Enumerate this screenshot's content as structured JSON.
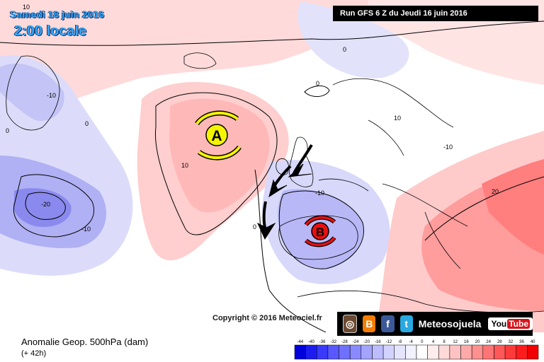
{
  "header": {
    "date_line": "Samedi 18 juin 2016",
    "time_line": "2:00 locale",
    "run_label": "Run GFS 6 Z du Jeudi 16 juin 2016"
  },
  "map": {
    "contour_labels": [
      "10",
      "0",
      "0",
      "0",
      "0",
      "10",
      "-10",
      "-20",
      "-10",
      "0",
      "-10",
      "10",
      "20",
      "-10"
    ],
    "high_label": "A",
    "low_label": "B"
  },
  "copyright": "Copyright © 2016 Meteociel.fr",
  "social": {
    "icons": [
      "instagram-icon",
      "blogger-icon",
      "facebook-icon",
      "twitter-icon"
    ],
    "brand": "Meteosojuela",
    "youtube_you": "You",
    "youtube_tube": "Tube"
  },
  "footer": {
    "title": "Anomalie Geop. 500hPa (dam)",
    "subtitle": "(+ 42h)"
  },
  "legend": {
    "ticks": [
      "-44",
      "-40",
      "-36",
      "-32",
      "-28",
      "-24",
      "-20",
      "-16",
      "-12",
      "-8",
      "-4",
      "0",
      "4",
      "8",
      "12",
      "16",
      "20",
      "24",
      "28",
      "32",
      "36",
      "40"
    ],
    "colors": [
      "#0000dc",
      "#1c1cf0",
      "#3a3afa",
      "#5858fc",
      "#7070fe",
      "#8a8aff",
      "#a4a4ff",
      "#bcbcff",
      "#d2d2ff",
      "#e4e4ff",
      "#f2f2ff",
      "#ffffff",
      "#ffecec",
      "#ffd8d8",
      "#ffc2c2",
      "#ffaaaa",
      "#ff9090",
      "#ff7474",
      "#ff5858",
      "#ff3a3a",
      "#ff1c1c",
      "#f00000"
    ]
  }
}
